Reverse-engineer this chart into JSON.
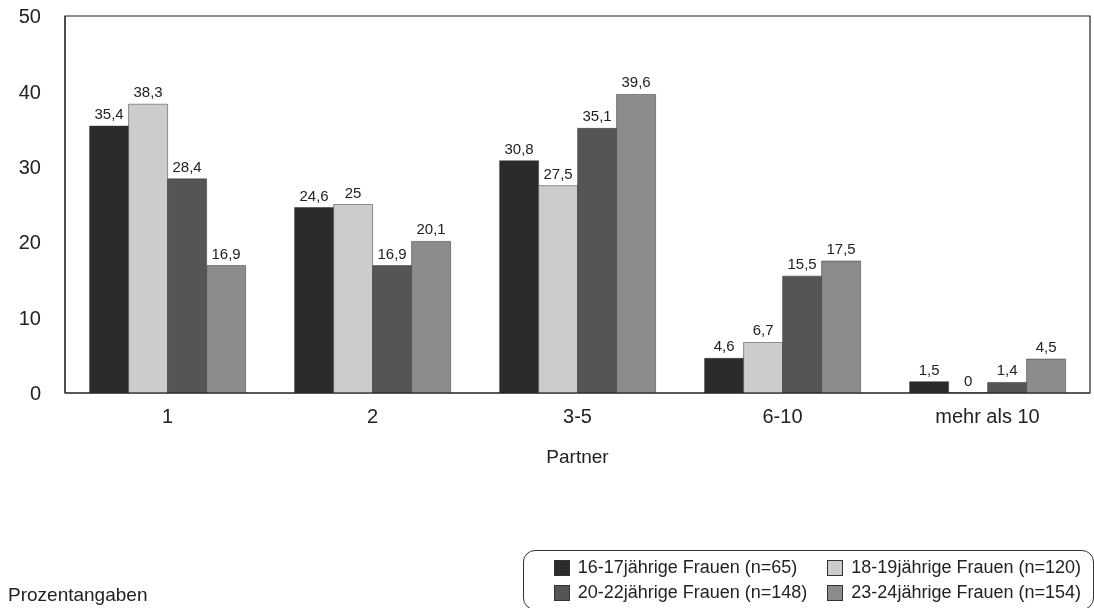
{
  "chart_data": {
    "type": "bar",
    "xlabel": "Partner",
    "categories": [
      "1",
      "2",
      "3-5",
      "6-10",
      "mehr als 10"
    ],
    "series": [
      {
        "name": "16-17jährige Frauen (n=65)",
        "color": "#2b2b2b",
        "values": [
          35.4,
          24.6,
          30.8,
          4.6,
          1.5
        ],
        "value_labels": [
          "35,4",
          "24,6",
          "30,8",
          "4,6",
          "1,5"
        ]
      },
      {
        "name": "18-19jährige Frauen (n=120)",
        "color": "#cccccc",
        "values": [
          38.3,
          25,
          27.5,
          6.7,
          0
        ],
        "value_labels": [
          "38,3",
          "25",
          "27,5",
          "6,7",
          "0"
        ]
      },
      {
        "name": "20-22jährige Frauen (n=148)",
        "color": "#555555",
        "values": [
          28.4,
          16.9,
          35.1,
          15.5,
          1.4
        ],
        "value_labels": [
          "28,4",
          "16,9",
          "35,1",
          "15,5",
          "1,4"
        ]
      },
      {
        "name": "23-24jährige Frauen (n=154)",
        "color": "#8c8c8c",
        "values": [
          16.9,
          20.1,
          39.6,
          17.5,
          4.5
        ],
        "value_labels": [
          "16,9",
          "20,1",
          "39,6",
          "17,5",
          "4,5"
        ]
      }
    ],
    "ylim": [
      0,
      50
    ],
    "yticks": [
      0,
      10,
      20,
      30,
      40,
      50
    ],
    "grid": false,
    "legend": "bottom right",
    "annotations": [
      "Prozentangaben"
    ]
  }
}
